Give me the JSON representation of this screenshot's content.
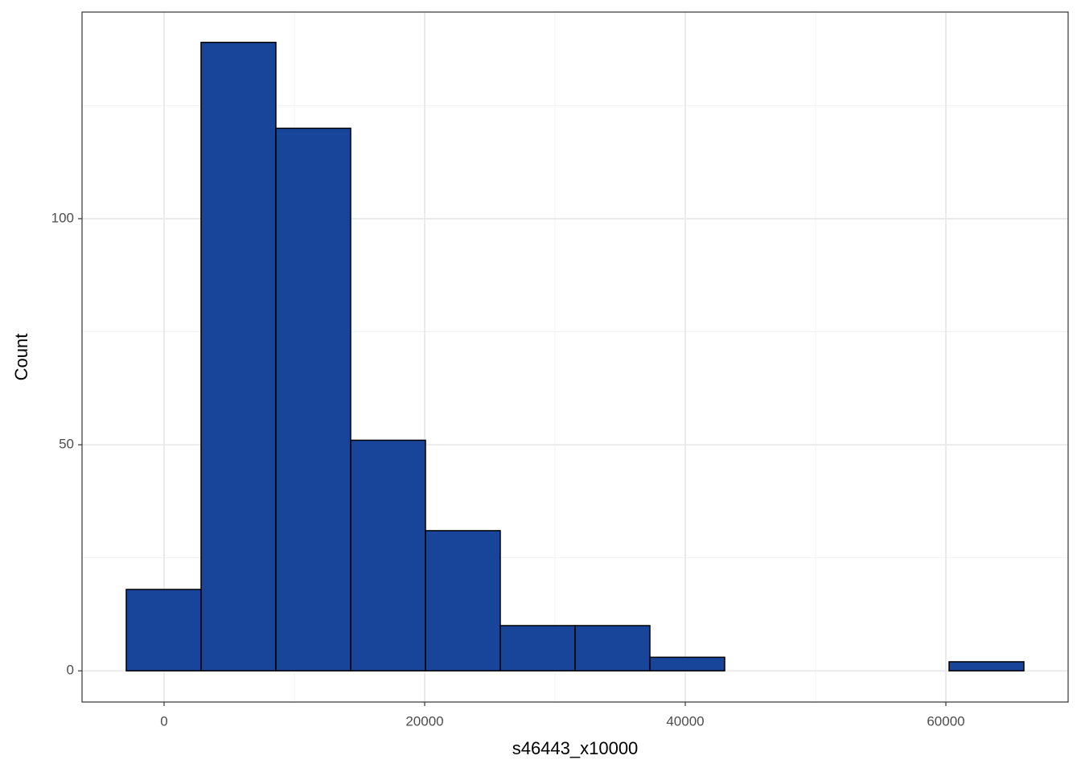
{
  "chart_data": {
    "type": "histogram",
    "x_label": "s46443_x10000",
    "y_label": "Count",
    "bins": [
      -2901,
      2840,
      8580,
      14321,
      20062,
      25802,
      31543,
      37284,
      43024,
      48765,
      54506,
      60247,
      65987
    ],
    "values": [
      18,
      139,
      120,
      51,
      31,
      10,
      10,
      3,
      0,
      0,
      0,
      2
    ],
    "color": "#18449a",
    "edge_color": "#000000",
    "xlim": [
      -6296,
      69383
    ],
    "ylim": [
      -6.9,
      145.7
    ],
    "xticks": [
      0,
      20000,
      40000,
      60000
    ],
    "yticks": [
      0,
      50,
      100
    ],
    "minor_xticks": [
      10000,
      30000,
      50000
    ],
    "minor_yticks": [
      25,
      75,
      125
    ],
    "grid": true
  }
}
